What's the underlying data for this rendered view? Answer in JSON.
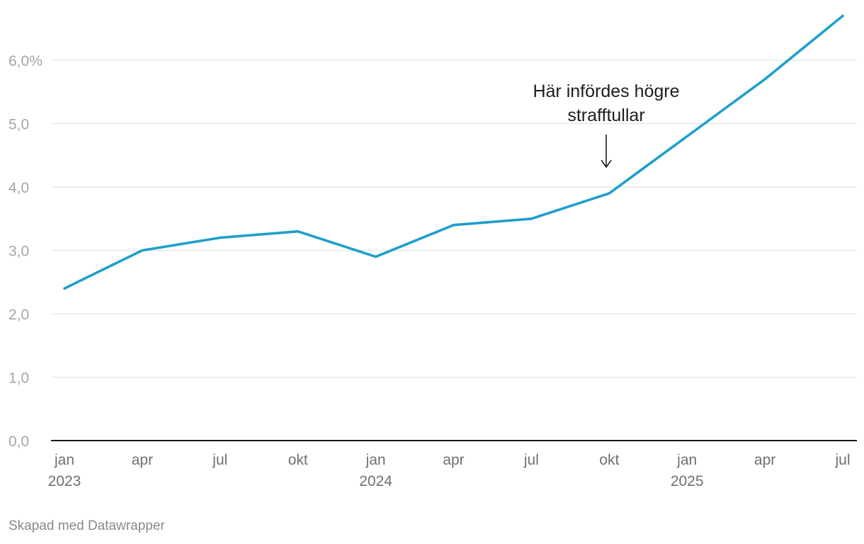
{
  "chart_data": {
    "type": "line",
    "x": [
      "2023-01",
      "2023-04",
      "2023-07",
      "2023-10",
      "2024-01",
      "2024-04",
      "2024-07",
      "2024-10",
      "2025-01",
      "2025-04",
      "2025-07"
    ],
    "x_tick_labels": [
      {
        "month": "jan",
        "year": "2023"
      },
      {
        "month": "apr",
        "year": ""
      },
      {
        "month": "jul",
        "year": ""
      },
      {
        "month": "okt",
        "year": ""
      },
      {
        "month": "jan",
        "year": "2024"
      },
      {
        "month": "apr",
        "year": ""
      },
      {
        "month": "jul",
        "year": ""
      },
      {
        "month": "okt",
        "year": ""
      },
      {
        "month": "jan",
        "year": "2025"
      },
      {
        "month": "apr",
        "year": ""
      },
      {
        "month": "jul",
        "year": ""
      }
    ],
    "series": [
      {
        "color": "#1f9fcb",
        "values": [
          2.4,
          3.0,
          3.2,
          3.3,
          2.9,
          3.4,
          3.5,
          3.9,
          4.8,
          5.7,
          6.7
        ]
      }
    ],
    "y_ticks": [
      0,
      1,
      2,
      3,
      4,
      5,
      6
    ],
    "y_tick_labels": [
      "0,0",
      "1,0",
      "2,0",
      "3,0",
      "4,0",
      "5,0",
      "6,0%"
    ],
    "ylim": [
      0,
      6.9
    ],
    "grid": true,
    "annotation": {
      "lines": [
        "Här infördes högre",
        "strafftullar"
      ],
      "at_x": "2024-10"
    },
    "colors": {
      "line": "#1f9fcb",
      "grid": "#e2e2e2",
      "baseline": "#1a1a1a"
    }
  },
  "footer": {
    "credit": "Skapad med Datawrapper"
  }
}
